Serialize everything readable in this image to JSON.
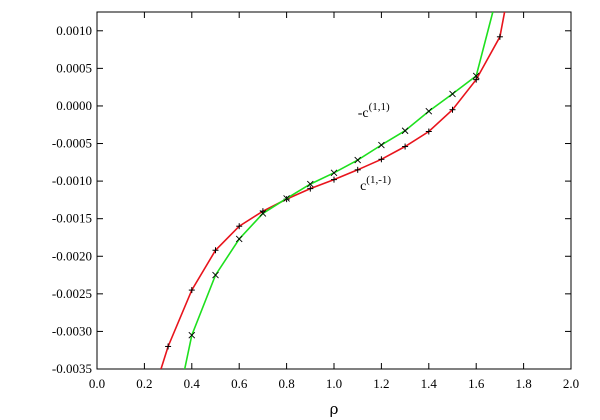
{
  "chart_data": {
    "type": "line",
    "title": "",
    "xlabel": "ρ",
    "ylabel": "",
    "xlim": [
      0.0,
      2.0
    ],
    "ylim": [
      -0.0035,
      0.00125
    ],
    "grid": false,
    "xticks": [
      "0.0",
      "0.2",
      "0.4",
      "0.6",
      "0.8",
      "1.0",
      "1.2",
      "1.4",
      "1.6",
      "1.8",
      "2.0"
    ],
    "xtick_values": [
      0.0,
      0.2,
      0.4,
      0.6,
      0.8,
      1.0,
      1.2,
      1.4,
      1.6,
      1.8,
      2.0
    ],
    "yticks": [
      "0.0010",
      "0.0005",
      "0.0000",
      "-0.0005",
      "-0.0010",
      "-0.0015",
      "-0.0020",
      "-0.0025",
      "-0.0030",
      "-0.0035"
    ],
    "ytick_values": [
      0.001,
      0.0005,
      0.0,
      -0.0005,
      -0.001,
      -0.0015,
      -0.002,
      -0.0025,
      -0.003,
      -0.0035
    ],
    "series": [
      {
        "label_base": "c",
        "label_sup": "(1,-1)",
        "color": "#e8141c",
        "marker": "+",
        "x": [
          0.27,
          0.3,
          0.4,
          0.5,
          0.6,
          0.7,
          0.8,
          0.9,
          1.0,
          1.1,
          1.2,
          1.3,
          1.4,
          1.5,
          1.6,
          1.7,
          1.72
        ],
        "y": [
          -0.0035,
          -0.0032,
          -0.00245,
          -0.00192,
          -0.0016,
          -0.0014,
          -0.00124,
          -0.0011,
          -0.00098,
          -0.00085,
          -0.00071,
          -0.00054,
          -0.00034,
          -5e-05,
          0.00035,
          0.00092,
          0.00125
        ]
      },
      {
        "label_base": "-c",
        "label_sup": "(1,1)",
        "color": "#1ee01e",
        "marker": "x",
        "x": [
          0.37,
          0.4,
          0.5,
          0.6,
          0.7,
          0.8,
          0.9,
          1.0,
          1.1,
          1.2,
          1.3,
          1.4,
          1.5,
          1.6,
          1.67
        ],
        "y": [
          -0.0035,
          -0.00305,
          -0.00225,
          -0.00177,
          -0.00143,
          -0.00123,
          -0.00104,
          -0.00089,
          -0.00072,
          -0.00052,
          -0.00033,
          -7e-05,
          0.00016,
          0.0004,
          0.00125
        ]
      }
    ],
    "annotations": [
      {
        "base": "-c",
        "sup": "(1,1)",
        "x": 1.1,
        "y": -0.00015
      },
      {
        "base": "c",
        "sup": "(1,-1)",
        "x": 1.11,
        "y": -0.00112
      }
    ]
  }
}
